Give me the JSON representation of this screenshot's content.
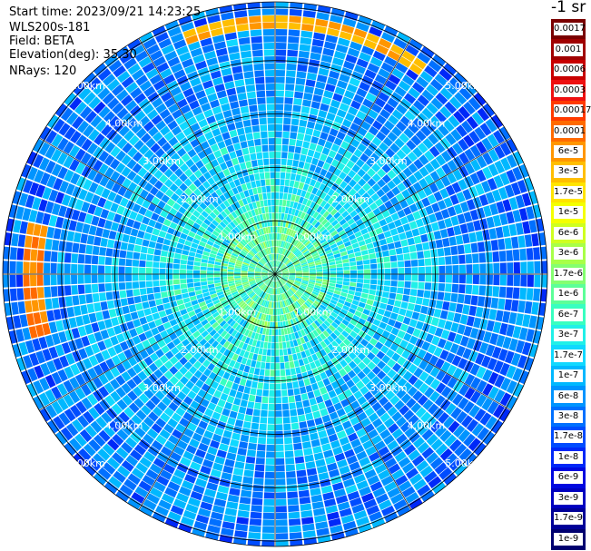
{
  "header": {
    "start_time": "Start time: 2023/09/21 14:23:25",
    "device": "WLS200s-181",
    "field": "Field: BETA",
    "elevation": "Elevation(deg): 35.30",
    "nrays": "NRays: 120"
  },
  "colorbar": {
    "unit_label": "-1 sr",
    "labels": [
      "0.0017",
      "0.001",
      "0.0006",
      "0.0003",
      "0.00017",
      "0.0001",
      "6e-5",
      "3e-5",
      "1.7e-5",
      "1e-5",
      "6e-6",
      "3e-6",
      "1.7e-6",
      "1e-6",
      "6e-7",
      "3e-7",
      "1.7e-7",
      "1e-7",
      "6e-8",
      "3e-8",
      "1.7e-8",
      "1e-8",
      "6e-9",
      "3e-9",
      "1.7e-9",
      "1e-9"
    ],
    "colors": [
      "#7a0000",
      "#a00000",
      "#c80000",
      "#ee1010",
      "#ff3a00",
      "#ff6a00",
      "#ff9600",
      "#ffbe00",
      "#ffe400",
      "#f4ff00",
      "#cfff20",
      "#a8ff48",
      "#84ff70",
      "#5cff98",
      "#38ffc0",
      "#20f0e8",
      "#10d8ff",
      "#00b8ff",
      "#0094ff",
      "#0070ff",
      "#004cff",
      "#0028f8",
      "#0008e0",
      "#0000c0",
      "#000098",
      "#000070"
    ]
  },
  "chart_data": {
    "type": "polar-ppi",
    "field": "BETA",
    "n_rays": 120,
    "range_unit": "km",
    "range_ring_labels": [
      "1.00km",
      "2.00km",
      "3.00km",
      "4.00km",
      "5.00km"
    ],
    "range_rings_km": [
      1,
      2,
      3,
      4,
      5
    ],
    "max_range_km": 5.1,
    "highlight_features": [
      {
        "description": "arc of elevated backscatter",
        "azimuth_deg_start": 340,
        "azimuth_deg_end": 35,
        "range_km": 4.7,
        "value": "3e-5"
      },
      {
        "description": "arc of elevated backscatter",
        "azimuth_deg_start": 255,
        "azimuth_deg_end": 282,
        "range_km": 4.5,
        "value": "6e-5"
      }
    ],
    "background_value_range": [
      "1e-9",
      "1.7e-7"
    ]
  }
}
